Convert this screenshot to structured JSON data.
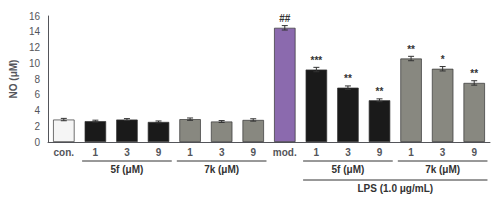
{
  "chart_data": {
    "type": "bar",
    "categories": [
      "con.",
      "1",
      "3",
      "9",
      "1",
      "3",
      "9",
      "mod.",
      "1",
      "3",
      "9",
      "1",
      "3",
      "9"
    ],
    "values": [
      2.85,
      2.65,
      2.85,
      2.55,
      2.9,
      2.6,
      2.8,
      14.5,
      9.2,
      6.9,
      5.3,
      10.6,
      9.3,
      7.5
    ],
    "errors": [
      0.15,
      0.12,
      0.12,
      0.12,
      0.15,
      0.12,
      0.15,
      0.28,
      0.28,
      0.22,
      0.18,
      0.28,
      0.28,
      0.28
    ],
    "colors": [
      "#f5f5f5",
      "#1a1a1a",
      "#1a1a1a",
      "#1a1a1a",
      "#888880",
      "#888880",
      "#888880",
      "#8b6aae",
      "#1a1a1a",
      "#1a1a1a",
      "#1a1a1a",
      "#888880",
      "#888880",
      "#888880"
    ],
    "ylabel": "NO (μM)",
    "ylim": [
      0,
      16
    ],
    "yticks": [
      0,
      2,
      4,
      6,
      8,
      10,
      12,
      14,
      16
    ],
    "grid": false,
    "annotations": [
      {
        "at": 7,
        "text": "##"
      },
      {
        "at": 8,
        "text": "***"
      },
      {
        "at": 9,
        "text": "**"
      },
      {
        "at": 10,
        "text": "**"
      },
      {
        "at": 11,
        "text": "**"
      },
      {
        "at": 12,
        "text": "*"
      },
      {
        "at": 13,
        "text": "**"
      }
    ],
    "groups": [
      {
        "label": "5f (μM)",
        "from": 1,
        "to": 3,
        "row": 1
      },
      {
        "label": "7k (μM)",
        "from": 4,
        "to": 6,
        "row": 1
      },
      {
        "label": "5f (μM)",
        "from": 8,
        "to": 10,
        "row": 1
      },
      {
        "label": "7k (μM)",
        "from": 11,
        "to": 13,
        "row": 1
      },
      {
        "label": "LPS (1.0 μg/mL)",
        "from": 8,
        "to": 13,
        "row": 2
      }
    ]
  }
}
